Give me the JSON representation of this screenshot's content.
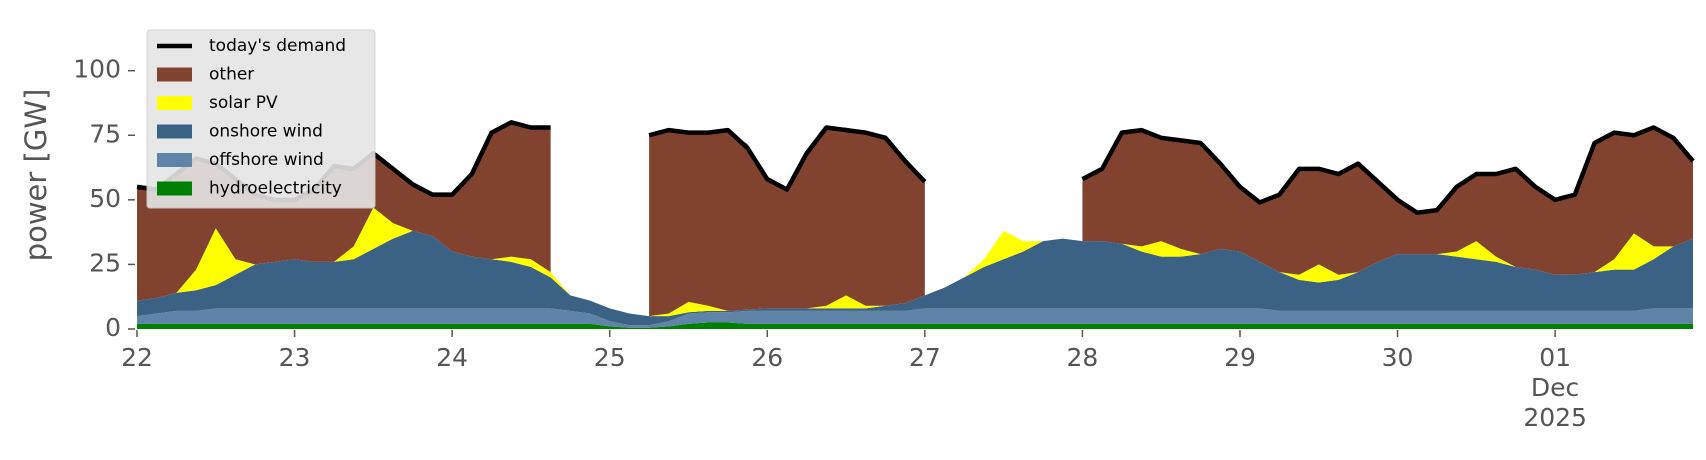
{
  "chart_data": {
    "type": "stacked-area",
    "y_label": "power [GW]",
    "x": [
      "2025-11-22T00:00",
      "2025-11-22T03:00",
      "2025-11-22T06:00",
      "2025-11-22T09:00",
      "2025-11-22T12:00",
      "2025-11-22T15:00",
      "2025-11-22T18:00",
      "2025-11-22T21:00",
      "2025-11-23T00:00",
      "2025-11-23T03:00",
      "2025-11-23T06:00",
      "2025-11-23T09:00",
      "2025-11-23T12:00",
      "2025-11-23T15:00",
      "2025-11-23T18:00",
      "2025-11-23T21:00",
      "2025-11-24T00:00",
      "2025-11-24T03:00",
      "2025-11-24T06:00",
      "2025-11-24T09:00",
      "2025-11-24T12:00",
      "2025-11-24T15:00",
      "2025-11-24T18:00",
      "2025-11-24T21:00",
      "2025-11-25T00:00",
      "2025-11-25T03:00",
      "2025-11-25T06:00",
      "2025-11-25T09:00",
      "2025-11-25T12:00",
      "2025-11-25T15:00",
      "2025-11-25T18:00",
      "2025-11-25T21:00",
      "2025-11-26T00:00",
      "2025-11-26T03:00",
      "2025-11-26T06:00",
      "2025-11-26T09:00",
      "2025-11-26T12:00",
      "2025-11-26T15:00",
      "2025-11-26T18:00",
      "2025-11-26T21:00",
      "2025-11-27T00:00",
      "2025-11-27T03:00",
      "2025-11-27T06:00",
      "2025-11-27T09:00",
      "2025-11-27T12:00",
      "2025-11-27T15:00",
      "2025-11-27T18:00",
      "2025-11-27T21:00",
      "2025-11-28T00:00",
      "2025-11-28T03:00",
      "2025-11-28T06:00",
      "2025-11-28T09:00",
      "2025-11-28T12:00",
      "2025-11-28T15:00",
      "2025-11-28T18:00",
      "2025-11-28T21:00",
      "2025-11-29T00:00",
      "2025-11-29T03:00",
      "2025-11-29T06:00",
      "2025-11-29T09:00",
      "2025-11-29T12:00",
      "2025-11-29T15:00",
      "2025-11-29T18:00",
      "2025-11-29T21:00",
      "2025-11-30T00:00",
      "2025-11-30T03:00",
      "2025-11-30T06:00",
      "2025-11-30T09:00",
      "2025-11-30T12:00",
      "2025-11-30T15:00",
      "2025-11-30T18:00",
      "2025-11-30T21:00",
      "2025-12-01T00:00",
      "2025-12-01T03:00",
      "2025-12-01T06:00",
      "2025-12-01T09:00",
      "2025-12-01T12:00",
      "2025-12-01T15:00",
      "2025-12-01T18:00",
      "2025-12-01T21:00"
    ],
    "series": [
      {
        "name": "today's demand",
        "color": "#000000",
        "type": "line",
        "values": [
          55,
          54,
          60,
          66,
          64,
          58,
          52,
          50,
          50,
          54,
          63,
          62,
          68,
          62,
          56,
          52,
          52,
          60,
          76,
          80,
          78,
          78,
          null,
          null,
          null,
          null,
          75,
          77,
          76,
          76,
          77,
          70,
          58,
          54,
          68,
          78,
          77,
          76,
          74,
          65,
          57,
          null,
          null,
          null,
          null,
          null,
          null,
          null,
          58,
          62,
          76,
          77,
          74,
          73,
          72,
          64,
          55,
          49,
          52,
          62,
          62,
          60,
          64,
          57,
          50,
          45,
          46,
          55,
          60,
          60,
          62,
          55,
          50,
          52,
          72,
          76,
          75,
          78,
          74,
          65
        ]
      },
      {
        "name": "other",
        "color": "#81432f",
        "type": "area",
        "values": [
          44,
          42,
          46,
          43,
          25,
          31,
          27,
          24,
          23,
          28,
          37,
          30,
          21,
          21,
          18,
          16,
          22,
          32,
          49,
          52,
          51,
          56,
          null,
          null,
          null,
          null,
          70,
          71,
          66,
          67,
          70,
          64,
          50,
          46,
          60,
          69,
          65,
          67,
          65,
          55,
          44,
          null,
          null,
          null,
          null,
          null,
          null,
          null,
          24,
          28,
          43,
          45,
          40,
          42,
          43,
          33,
          25,
          23,
          30,
          41,
          37,
          39,
          42,
          31,
          21,
          16,
          17,
          25,
          26,
          32,
          38,
          32,
          29,
          31,
          50,
          49,
          38,
          46,
          42,
          30
        ]
      },
      {
        "name": "solar PV",
        "color": "#ffff00",
        "type": "area",
        "values": [
          0,
          0,
          0,
          8,
          22,
          6,
          0,
          0,
          0,
          0,
          0,
          5,
          16,
          6,
          0,
          0,
          0,
          0,
          0,
          2,
          3,
          2,
          0,
          0,
          0,
          0,
          0,
          1,
          4,
          2,
          0,
          0,
          0,
          0,
          0,
          1,
          5,
          1,
          0,
          0,
          0,
          0,
          0,
          3,
          11,
          4,
          0,
          0,
          0,
          0,
          0,
          2,
          6,
          3,
          0,
          0,
          0,
          0,
          0,
          2,
          7,
          2,
          0,
          0,
          0,
          0,
          0,
          2,
          7,
          2,
          0,
          0,
          0,
          0,
          0,
          4,
          14,
          5,
          0,
          0
        ]
      },
      {
        "name": "onshore wind",
        "color": "#3b6184",
        "type": "area",
        "values": [
          6,
          6,
          7,
          8,
          9,
          13,
          17,
          18,
          19,
          18,
          18,
          19,
          23,
          27,
          30,
          28,
          22,
          20,
          19,
          18,
          16,
          12,
          6,
          5,
          5,
          4.5,
          3.5,
          2,
          0.5,
          0.5,
          0.5,
          0.5,
          1,
          1,
          1,
          1,
          1,
          1,
          2,
          3,
          5,
          8,
          12,
          16,
          19,
          22,
          26,
          27,
          26,
          26,
          25,
          22,
          20,
          20,
          21,
          23,
          22,
          18,
          15,
          12,
          11,
          12,
          15,
          19,
          22,
          22,
          22,
          21,
          20,
          19,
          17,
          16,
          14,
          14,
          15,
          16,
          16,
          19,
          24,
          27
        ]
      },
      {
        "name": "offshore wind",
        "color": "#5f84a8",
        "type": "area",
        "values": [
          3,
          4,
          5,
          5,
          6,
          6,
          6,
          6,
          6,
          6,
          6,
          6,
          6,
          6,
          6,
          6,
          6,
          6,
          6,
          6,
          6,
          6,
          5,
          4,
          2,
          1,
          1,
          2,
          4,
          4,
          4,
          5,
          5,
          5,
          5,
          5,
          5,
          5,
          5,
          5,
          6,
          6,
          6,
          6,
          6,
          6,
          6,
          6,
          6,
          6,
          6,
          6,
          6,
          6,
          6,
          6,
          6,
          6,
          5,
          5,
          5,
          5,
          5,
          5,
          5,
          5,
          5,
          5,
          5,
          5,
          5,
          5,
          5,
          5,
          5,
          5,
          5,
          6,
          6,
          6
        ]
      },
      {
        "name": "hydroelectricity",
        "color": "#008000",
        "type": "area",
        "values": [
          2,
          2,
          2,
          2,
          2,
          2,
          2,
          2,
          2,
          2,
          2,
          2,
          2,
          2,
          2,
          2,
          2,
          2,
          2,
          2,
          2,
          2,
          2,
          2,
          1,
          0.5,
          0.5,
          1,
          2,
          2.5,
          2.5,
          2,
          2,
          2,
          2,
          2,
          2,
          2,
          2,
          2,
          2,
          2,
          2,
          2,
          2,
          2,
          2,
          2,
          2,
          2,
          2,
          2,
          2,
          2,
          2,
          2,
          2,
          2,
          2,
          2,
          2,
          2,
          2,
          2,
          2,
          2,
          2,
          2,
          2,
          2,
          2,
          2,
          2,
          2,
          2,
          2,
          2,
          2,
          2,
          2
        ]
      }
    ],
    "xlim": [
      "2025-11-22T00:00",
      "2025-12-01T21:00"
    ],
    "xticks": [
      {
        "value": "2025-11-22T00:00",
        "label": "22"
      },
      {
        "value": "2025-11-23T00:00",
        "label": "23"
      },
      {
        "value": "2025-11-24T00:00",
        "label": "24"
      },
      {
        "value": "2025-11-25T00:00",
        "label": "25"
      },
      {
        "value": "2025-11-26T00:00",
        "label": "26"
      },
      {
        "value": "2025-11-27T00:00",
        "label": "27"
      },
      {
        "value": "2025-11-28T00:00",
        "label": "28"
      },
      {
        "value": "2025-11-29T00:00",
        "label": "29"
      },
      {
        "value": "2025-11-30T00:00",
        "label": "30"
      },
      {
        "value": "2025-12-01T00:00",
        "label": "01\nDec\n2025"
      }
    ],
    "ylim": [
      0,
      120
    ],
    "yticks": [
      0,
      25,
      50,
      75,
      100
    ],
    "legend": "upper left"
  }
}
